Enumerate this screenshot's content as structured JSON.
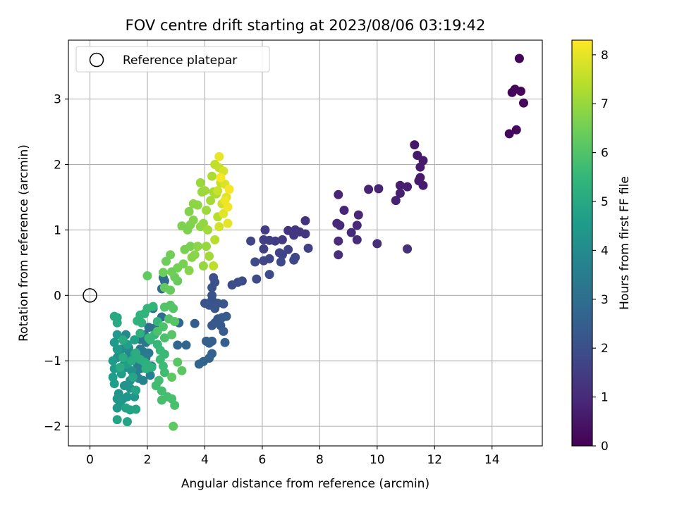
{
  "chart_data": {
    "type": "scatter",
    "title": "FOV centre drift starting at 2023/08/06 03:19:42",
    "xlabel": "Angular distance from reference (arcmin)",
    "ylabel": "Rotation from reference (arcmin)",
    "xlim": [
      -0.75,
      15.75
    ],
    "ylim": [
      -2.3,
      3.9
    ],
    "xticks": [
      0,
      2,
      4,
      6,
      8,
      10,
      12,
      14
    ],
    "yticks": [
      -2,
      -1,
      0,
      1,
      2,
      3
    ],
    "grid": true,
    "legend": {
      "location": "upper-left",
      "entries": [
        "Reference platepar"
      ]
    },
    "reference_point": {
      "x": 0,
      "y": 0
    },
    "colorbar": {
      "label": "Hours from first FF file",
      "colormap": "viridis",
      "range": [
        0,
        8.3
      ],
      "ticks": [
        0,
        1,
        2,
        3,
        4,
        5,
        6,
        7,
        8
      ]
    },
    "colors": {
      "viridis_stops": [
        "#440154",
        "#482878",
        "#3e4a89",
        "#31688e",
        "#26828e",
        "#1f9e89",
        "#35b779",
        "#6ece58",
        "#b5de2b",
        "#fde725"
      ],
      "grid": "#b0b0b0"
    },
    "series_columns": [
      "x",
      "y",
      "hours"
    ],
    "points": [
      [
        14.95,
        3.62,
        0.05
      ],
      [
        14.7,
        3.1,
        0.08
      ],
      [
        14.8,
        3.15,
        0.1
      ],
      [
        15.0,
        3.12,
        0.12
      ],
      [
        15.1,
        2.94,
        0.15
      ],
      [
        14.6,
        2.47,
        0.18
      ],
      [
        14.85,
        2.53,
        0.2
      ],
      [
        11.3,
        2.3,
        0.5
      ],
      [
        11.4,
        2.14,
        0.55
      ],
      [
        11.6,
        2.06,
        0.58
      ],
      [
        11.5,
        1.96,
        0.6
      ],
      [
        11.5,
        1.8,
        0.62
      ],
      [
        11.45,
        1.75,
        0.65
      ],
      [
        11.6,
        1.68,
        0.68
      ],
      [
        10.8,
        1.68,
        0.7
      ],
      [
        11.05,
        1.66,
        0.72
      ],
      [
        10.8,
        1.56,
        0.75
      ],
      [
        10.65,
        1.45,
        0.78
      ],
      [
        9.7,
        1.62,
        0.8
      ],
      [
        10.05,
        1.63,
        0.82
      ],
      [
        8.65,
        1.54,
        0.85
      ],
      [
        8.85,
        1.3,
        0.88
      ],
      [
        9.35,
        1.23,
        0.9
      ],
      [
        9.3,
        1.07,
        0.92
      ],
      [
        8.6,
        1.1,
        0.95
      ],
      [
        8.7,
        1.07,
        0.98
      ],
      [
        9.1,
        0.96,
        1.0
      ],
      [
        9.3,
        0.85,
        1.02
      ],
      [
        8.65,
        0.83,
        1.05
      ],
      [
        10.0,
        0.79,
        1.08
      ],
      [
        11.05,
        0.71,
        1.1
      ],
      [
        8.65,
        0.62,
        1.12
      ],
      [
        7.5,
        1.14,
        1.2
      ],
      [
        6.9,
        0.99,
        1.25
      ],
      [
        7.15,
        1.0,
        1.28
      ],
      [
        7.3,
        0.97,
        1.3
      ],
      [
        7.5,
        0.94,
        1.32
      ],
      [
        7.1,
        0.92,
        1.35
      ],
      [
        6.7,
        0.85,
        1.4
      ],
      [
        6.45,
        0.83,
        1.45
      ],
      [
        6.1,
        1.0,
        1.5
      ],
      [
        6.05,
        0.85,
        1.52
      ],
      [
        6.25,
        0.84,
        1.55
      ],
      [
        6.05,
        0.71,
        1.58
      ],
      [
        7.6,
        0.72,
        1.6
      ],
      [
        6.9,
        0.7,
        1.62
      ],
      [
        6.6,
        0.65,
        1.65
      ],
      [
        6.7,
        0.62,
        1.68
      ],
      [
        5.6,
        0.83,
        1.7
      ],
      [
        6.25,
        0.56,
        1.72
      ],
      [
        6.05,
        0.53,
        1.75
      ],
      [
        7.15,
        0.58,
        1.78
      ],
      [
        7.1,
        0.54,
        1.8
      ],
      [
        6.65,
        0.51,
        1.82
      ],
      [
        5.75,
        0.51,
        1.85
      ],
      [
        6.25,
        0.32,
        1.88
      ],
      [
        5.8,
        0.25,
        1.9
      ],
      [
        5.3,
        0.22,
        1.92
      ],
      [
        5.15,
        0.2,
        1.95
      ],
      [
        4.95,
        0.16,
        1.98
      ],
      [
        4.3,
        0.27,
        2.0
      ],
      [
        4.35,
        0.2,
        2.02
      ],
      [
        4.25,
        0.12,
        2.05
      ],
      [
        4.25,
        0.0,
        2.08
      ],
      [
        4.25,
        -0.07,
        2.1
      ],
      [
        4.45,
        -0.12,
        2.12
      ],
      [
        4.0,
        -0.12,
        2.15
      ],
      [
        4.15,
        -0.15,
        2.18
      ],
      [
        4.35,
        -0.2,
        2.2
      ],
      [
        4.65,
        -0.13,
        2.22
      ],
      [
        4.45,
        -0.36,
        2.25
      ],
      [
        4.35,
        -0.42,
        2.28
      ],
      [
        4.25,
        -0.46,
        2.3
      ],
      [
        4.55,
        -0.46,
        2.32
      ],
      [
        4.6,
        -0.34,
        2.35
      ],
      [
        4.75,
        -0.32,
        2.38
      ],
      [
        3.65,
        -0.43,
        2.4
      ],
      [
        4.65,
        -0.55,
        2.42
      ],
      [
        4.25,
        -0.7,
        2.45
      ],
      [
        4.05,
        -0.7,
        2.48
      ],
      [
        4.15,
        -0.73,
        2.5
      ],
      [
        4.7,
        -0.72,
        2.52
      ],
      [
        4.25,
        -0.89,
        2.55
      ],
      [
        3.95,
        -1.01,
        2.6
      ],
      [
        4.15,
        -0.96,
        2.62
      ],
      [
        3.8,
        -1.05,
        2.65
      ],
      [
        3.35,
        -0.76,
        2.7
      ],
      [
        3.05,
        -0.76,
        2.72
      ],
      [
        3.1,
        -0.42,
        2.75
      ],
      [
        2.55,
        0.27,
        2.8
      ],
      [
        2.6,
        0.22,
        2.82
      ],
      [
        2.5,
        0.1,
        2.85
      ],
      [
        2.2,
        -0.2,
        2.9
      ],
      [
        2.5,
        -0.33,
        2.95
      ],
      [
        2.05,
        -0.49,
        3.0
      ],
      [
        2.25,
        -0.5,
        3.05
      ],
      [
        2.4,
        -0.48,
        3.1
      ],
      [
        1.9,
        -0.6,
        3.15
      ],
      [
        1.75,
        -0.67,
        3.2
      ],
      [
        1.95,
        -0.72,
        3.25
      ],
      [
        1.75,
        -0.82,
        3.3
      ],
      [
        1.85,
        -0.86,
        3.35
      ],
      [
        2.05,
        -0.88,
        3.4
      ],
      [
        1.6,
        -0.9,
        3.42
      ],
      [
        1.95,
        -0.95,
        3.45
      ],
      [
        1.65,
        -1.05,
        3.5
      ],
      [
        2.15,
        -1.08,
        3.55
      ],
      [
        1.75,
        -1.12,
        3.6
      ],
      [
        1.6,
        -1.2,
        3.62
      ],
      [
        2.1,
        -1.22,
        3.65
      ],
      [
        1.7,
        -1.27,
        3.7
      ],
      [
        1.85,
        -1.3,
        3.72
      ],
      [
        1.45,
        -0.9,
        3.78
      ],
      [
        1.35,
        -0.85,
        3.8
      ],
      [
        1.3,
        -0.98,
        3.85
      ],
      [
        1.25,
        -0.6,
        3.9
      ],
      [
        1.35,
        -0.8,
        3.95
      ],
      [
        1.1,
        -0.82,
        4.0
      ],
      [
        1.2,
        -1.05,
        4.05
      ],
      [
        0.95,
        -0.95,
        4.1
      ],
      [
        1.0,
        -0.85,
        4.12
      ],
      [
        1.25,
        -1.1,
        4.15
      ],
      [
        1.45,
        -1.15,
        4.18
      ],
      [
        1.4,
        -1.3,
        4.2
      ],
      [
        1.2,
        -1.38,
        4.22
      ],
      [
        1.0,
        -1.5,
        4.25
      ],
      [
        1.15,
        -1.58,
        4.28
      ],
      [
        1.3,
        -1.55,
        4.3
      ],
      [
        1.4,
        -1.42,
        4.32
      ],
      [
        1.55,
        -1.55,
        4.35
      ],
      [
        0.95,
        -1.58,
        4.38
      ],
      [
        1.05,
        -1.65,
        4.4
      ],
      [
        0.95,
        -1.72,
        4.42
      ],
      [
        0.95,
        -0.6,
        4.45
      ],
      [
        0.85,
        -0.72,
        4.48
      ],
      [
        0.95,
        -0.82,
        4.5
      ],
      [
        0.8,
        -1.0,
        4.52
      ],
      [
        0.85,
        -1.12,
        4.55
      ],
      [
        1.1,
        -1.2,
        4.58
      ],
      [
        0.8,
        -1.25,
        4.6
      ],
      [
        0.85,
        -1.35,
        4.62
      ],
      [
        1.3,
        -1.05,
        4.65
      ],
      [
        1.3,
        -0.75,
        4.68
      ],
      [
        1.55,
        -0.68,
        4.7
      ],
      [
        1.55,
        -0.9,
        4.72
      ],
      [
        1.4,
        -1.75,
        4.75
      ],
      [
        1.25,
        -1.72,
        4.78
      ],
      [
        1.3,
        -1.93,
        4.8
      ],
      [
        0.95,
        -1.9,
        4.82
      ],
      [
        1.6,
        -1.74,
        4.85
      ],
      [
        1.6,
        -1.45,
        4.88
      ],
      [
        1.5,
        -1.25,
        4.9
      ],
      [
        0.95,
        -0.34,
        4.95
      ],
      [
        0.85,
        -0.32,
        5.0
      ],
      [
        0.95,
        -0.42,
        5.02
      ],
      [
        1.15,
        -0.68,
        5.05
      ],
      [
        1.15,
        -0.95,
        5.08
      ],
      [
        1.05,
        -1.1,
        5.1
      ],
      [
        1.45,
        -1.0,
        5.12
      ],
      [
        1.6,
        -0.88,
        5.15
      ],
      [
        1.75,
        -0.98,
        5.18
      ],
      [
        1.9,
        -1.02,
        5.2
      ],
      [
        2.0,
        -1.06,
        5.22
      ],
      [
        2.15,
        -1.1,
        5.25
      ],
      [
        1.95,
        -1.12,
        5.28
      ],
      [
        1.75,
        -0.58,
        5.3
      ],
      [
        1.8,
        -0.42,
        5.32
      ],
      [
        1.65,
        -0.39,
        5.35
      ],
      [
        1.75,
        -0.3,
        5.38
      ],
      [
        1.9,
        -0.28,
        5.4
      ],
      [
        2.0,
        -0.2,
        5.42
      ],
      [
        2.2,
        -0.17,
        5.45
      ],
      [
        2.35,
        -0.4,
        5.48
      ],
      [
        2.25,
        -0.6,
        5.5
      ],
      [
        2.1,
        -0.68,
        5.52
      ],
      [
        2.35,
        -0.75,
        5.55
      ],
      [
        2.05,
        -0.65,
        5.58
      ],
      [
        2.45,
        -0.84,
        5.6
      ],
      [
        2.6,
        -0.9,
        5.62
      ],
      [
        2.45,
        -0.98,
        5.65
      ],
      [
        2.55,
        -1.08,
        5.68
      ],
      [
        2.6,
        -1.18,
        5.7
      ],
      [
        2.4,
        -1.3,
        5.72
      ],
      [
        2.3,
        -1.38,
        5.75
      ],
      [
        2.5,
        -1.46,
        5.78
      ],
      [
        2.7,
        -1.55,
        5.8
      ],
      [
        2.5,
        -1.6,
        5.82
      ],
      [
        2.85,
        -1.58,
        5.85
      ],
      [
        2.95,
        -1.68,
        5.88
      ],
      [
        2.6,
        -0.65,
        5.9
      ],
      [
        2.35,
        -0.55,
        5.92
      ],
      [
        2.55,
        -0.48,
        5.95
      ],
      [
        2.75,
        -0.36,
        5.98
      ],
      [
        2.6,
        -0.18,
        6.0
      ],
      [
        2.8,
        -0.15,
        6.02
      ],
      [
        2.9,
        -0.2,
        6.05
      ],
      [
        2.95,
        -0.4,
        6.08
      ],
      [
        2.85,
        -0.6,
        6.1
      ],
      [
        3.05,
        -1.02,
        6.12
      ],
      [
        3.2,
        -1.15,
        6.15
      ],
      [
        2.85,
        -1.25,
        6.18
      ],
      [
        2.9,
        -2.0,
        6.2
      ],
      [
        2.0,
        0.3,
        6.25
      ],
      [
        2.6,
        0.12,
        6.3
      ],
      [
        2.8,
        0.08,
        6.32
      ],
      [
        3.05,
        0.22,
        6.35
      ],
      [
        2.95,
        0.28,
        6.38
      ],
      [
        2.55,
        0.35,
        6.4
      ],
      [
        2.65,
        0.52,
        6.42
      ],
      [
        2.85,
        0.36,
        6.45
      ],
      [
        2.8,
        0.62,
        6.48
      ],
      [
        3.05,
        0.42,
        6.5
      ],
      [
        3.25,
        0.48,
        6.55
      ],
      [
        3.3,
        0.7,
        6.58
      ],
      [
        3.5,
        0.75,
        6.6
      ],
      [
        3.2,
        1.06,
        6.62
      ],
      [
        3.4,
        1.0,
        6.65
      ],
      [
        3.5,
        1.08,
        6.68
      ],
      [
        3.45,
        1.28,
        6.7
      ],
      [
        3.6,
        1.15,
        6.72
      ],
      [
        3.45,
        0.38,
        6.75
      ],
      [
        3.55,
        0.58,
        6.78
      ],
      [
        3.65,
        0.62,
        6.8
      ],
      [
        3.75,
        0.75,
        6.82
      ],
      [
        3.6,
        1.4,
        6.85
      ],
      [
        3.75,
        1.38,
        6.88
      ],
      [
        3.85,
        1.05,
        6.9
      ],
      [
        3.95,
        1.1,
        6.92
      ],
      [
        3.95,
        0.45,
        6.95
      ],
      [
        4.05,
        0.75,
        6.98
      ],
      [
        3.9,
        1.58,
        7.0
      ],
      [
        3.85,
        1.72,
        7.02
      ],
      [
        4.0,
        1.6,
        7.05
      ],
      [
        4.05,
        1.3,
        7.08
      ],
      [
        4.1,
        1.0,
        7.1
      ],
      [
        4.15,
        0.6,
        7.12
      ],
      [
        4.2,
        1.45,
        7.15
      ],
      [
        4.3,
        1.58,
        7.2
      ],
      [
        4.25,
        1.82,
        7.25
      ],
      [
        4.4,
        1.55,
        7.3
      ],
      [
        4.45,
        1.2,
        7.35
      ],
      [
        4.35,
        0.85,
        7.4
      ],
      [
        4.3,
        0.45,
        7.45
      ],
      [
        4.35,
        2.0,
        7.5
      ],
      [
        4.5,
        1.95,
        7.55
      ],
      [
        4.55,
        1.72,
        7.6
      ],
      [
        4.45,
        1.6,
        7.65
      ],
      [
        4.6,
        1.4,
        7.7
      ],
      [
        4.5,
        1.05,
        7.75
      ],
      [
        4.65,
        1.9,
        7.8
      ],
      [
        4.7,
        1.7,
        7.85
      ],
      [
        4.75,
        1.5,
        7.9
      ],
      [
        4.65,
        1.25,
        7.95
      ],
      [
        4.8,
        1.1,
        8.0
      ],
      [
        4.5,
        2.12,
        8.05
      ],
      [
        4.7,
        1.45,
        8.1
      ],
      [
        4.8,
        1.35,
        8.15
      ],
      [
        4.85,
        1.62,
        8.2
      ],
      [
        4.55,
        1.8,
        8.25
      ]
    ]
  }
}
